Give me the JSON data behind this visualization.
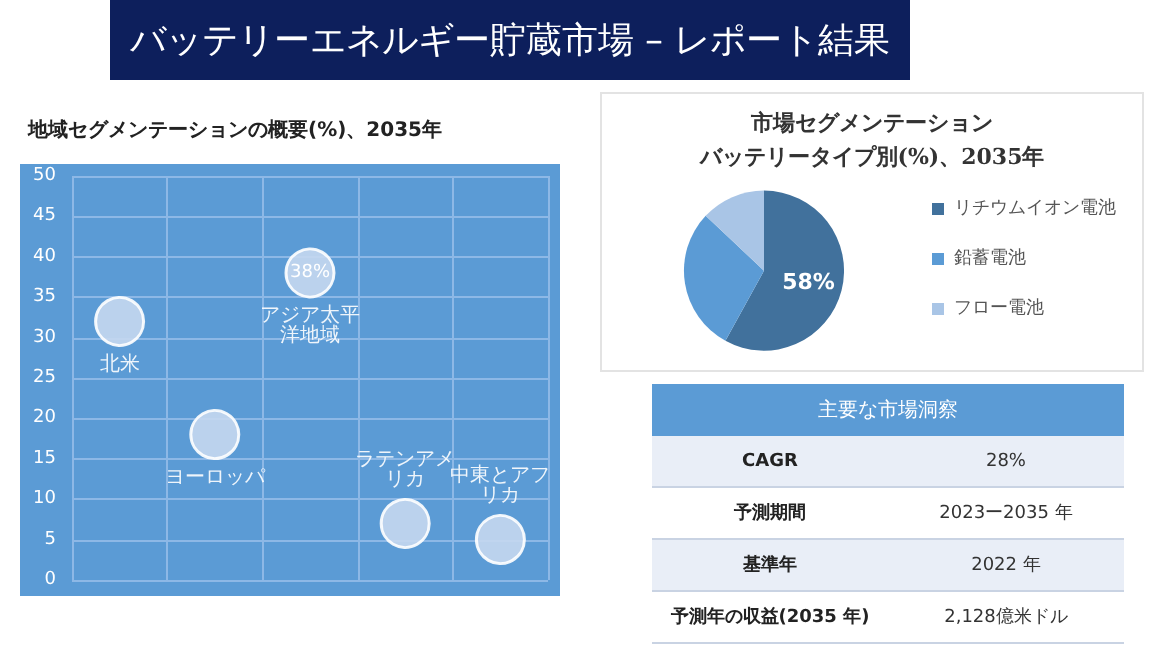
{
  "chart_data": [
    {
      "type": "bubble",
      "title": "バッテリーエネルギー貯蔵市場 – レポート結果",
      "subtitle": "地域セグメンテーションの概要(%)、2035年",
      "categories": [
        null,
        null,
        null,
        null,
        null
      ],
      "ylim": [
        0,
        50
      ],
      "yticks": [
        0,
        5,
        10,
        15,
        20,
        25,
        30,
        35,
        40,
        45,
        50
      ],
      "grid": true,
      "legend": false,
      "marker": "circle",
      "series": [
        {
          "name": "北米",
          "color": "#c5d8ef",
          "values": [
            32,
            null,
            null,
            null,
            null
          ],
          "sizes": [
            1,
            null,
            null,
            null,
            null
          ]
        },
        {
          "name": "ヨーロッパ",
          "color": "#c5d8ef",
          "values": [
            null,
            18,
            null,
            null,
            null
          ],
          "sizes": [
            null,
            1,
            null,
            null,
            null
          ]
        },
        {
          "name": "アジア太平洋地域",
          "color": "#c5d8ef",
          "values": [
            null,
            null,
            38,
            null,
            null
          ],
          "sizes": [
            null,
            null,
            1,
            null,
            null
          ],
          "value_labels": [
            null,
            null,
            "38%",
            null,
            null
          ]
        },
        {
          "name": "ラテンアメリカ",
          "color": "#c5d8ef",
          "values": [
            null,
            null,
            null,
            7,
            null
          ],
          "sizes": [
            null,
            null,
            null,
            1,
            null
          ]
        },
        {
          "name": "中東とアフリカ",
          "color": "#c5d8ef",
          "values": [
            null,
            null,
            null,
            null,
            5
          ],
          "sizes": [
            null,
            null,
            null,
            null,
            1
          ]
        }
      ]
    },
    {
      "type": "pie",
      "title": "市場セグメンテーション",
      "subtitle": "バッテリータイプ別(%)、2035年",
      "categories": [
        "リチウムイオン電池",
        "鉛蓄電池",
        "フロー電池"
      ],
      "values": [
        58,
        29,
        13
      ],
      "colors": [
        "#41719c",
        "#5b9bd5",
        "#a9c5e6"
      ],
      "value_labels": [
        "58%",
        null,
        null
      ],
      "legend": "right"
    },
    {
      "type": "other",
      "title": "主要な市場洞察",
      "annotations": [
        "CAGR",
        "28%",
        "予測期間",
        "2023ー2035 年",
        "基準年",
        "2022 年",
        "予測年の収益(2035 年)",
        "2,128億米ドル"
      ]
    }
  ]
}
